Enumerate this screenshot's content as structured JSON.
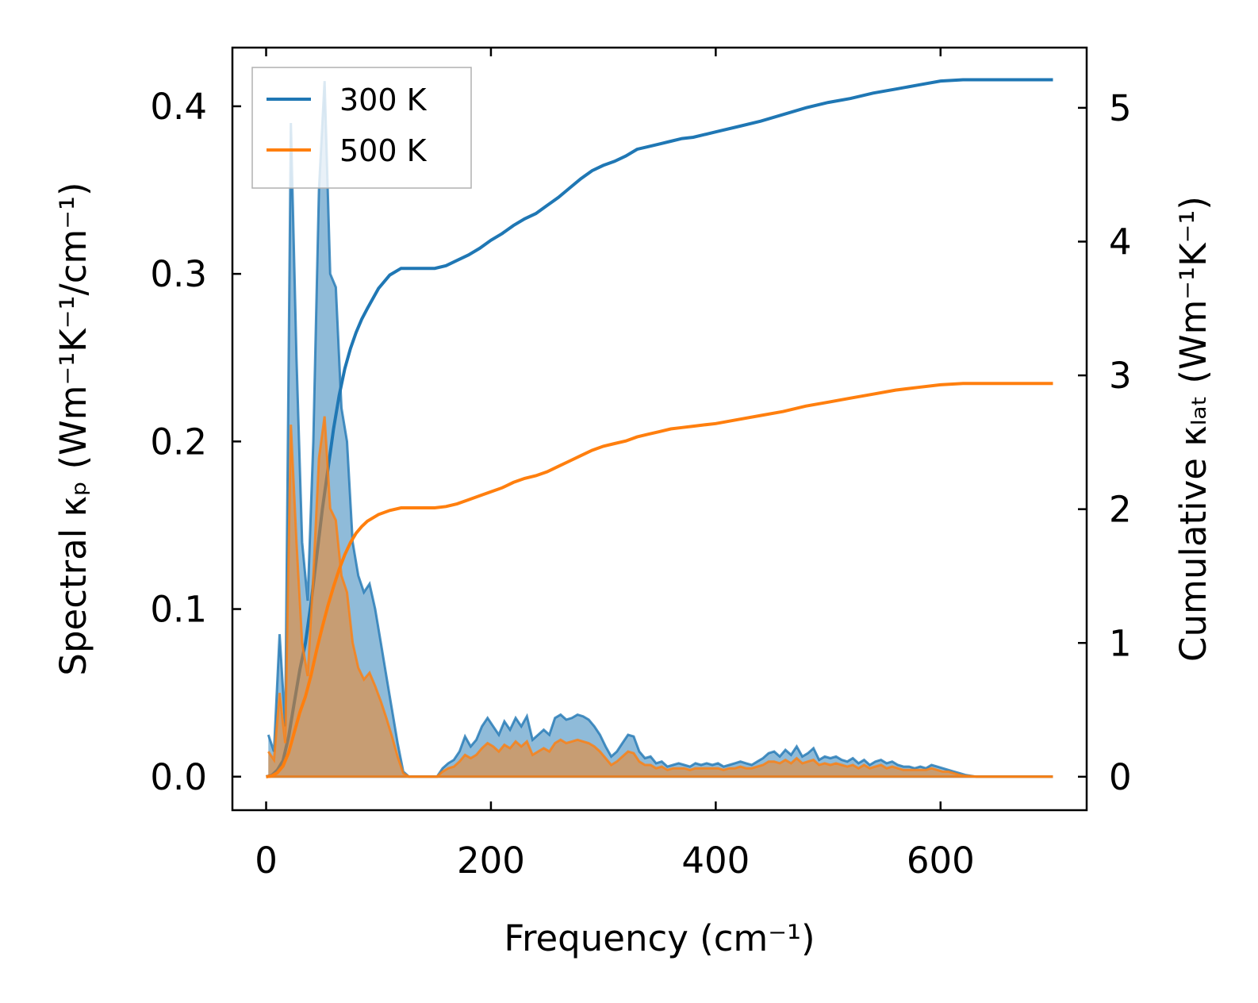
{
  "chart_data": {
    "type": "line",
    "xlabel": "Frequency (cm⁻¹)",
    "ylabel_left": "Spectral κₚ (Wm⁻¹K⁻¹/cm⁻¹)",
    "ylabel_right": "Cumulative κₗₐₜ (Wm⁻¹K⁻¹)",
    "xlim": [
      -30,
      730
    ],
    "ylim_left": [
      -0.02,
      0.435
    ],
    "ylim_right": [
      -0.25,
      5.45
    ],
    "xticks": [
      0,
      200,
      400,
      600
    ],
    "xtick_labels": [
      "0",
      "200",
      "400",
      "600"
    ],
    "yticks_left": [
      0.0,
      0.1,
      0.2,
      0.3,
      0.4
    ],
    "ytick_labels_left": [
      "0.0",
      "0.1",
      "0.2",
      "0.3",
      "0.4"
    ],
    "yticks_right": [
      0,
      1,
      2,
      3,
      4,
      5
    ],
    "ytick_labels_right": [
      "0",
      "1",
      "2",
      "3",
      "4",
      "5"
    ],
    "legend": {
      "position": "top-left",
      "entries": [
        "300 K",
        "500 K"
      ]
    },
    "series": [
      {
        "name": "300 K",
        "color": "#1f77b4",
        "spectral": {
          "x": [
            2,
            7,
            12,
            17,
            22,
            27,
            32,
            37,
            42,
            47,
            52,
            57,
            62,
            67,
            72,
            77,
            82,
            87,
            92,
            97,
            102,
            107,
            112,
            117,
            122,
            127,
            132,
            137,
            142,
            147,
            152,
            157,
            162,
            167,
            172,
            177,
            182,
            187,
            192,
            197,
            202,
            207,
            212,
            217,
            222,
            227,
            232,
            237,
            242,
            247,
            252,
            257,
            262,
            267,
            272,
            277,
            282,
            287,
            292,
            297,
            302,
            307,
            312,
            317,
            322,
            327,
            332,
            337,
            342,
            347,
            352,
            357,
            362,
            367,
            372,
            377,
            382,
            387,
            392,
            397,
            402,
            407,
            412,
            417,
            422,
            427,
            432,
            437,
            442,
            447,
            452,
            457,
            462,
            467,
            472,
            477,
            482,
            487,
            492,
            497,
            502,
            507,
            512,
            517,
            522,
            527,
            532,
            537,
            542,
            547,
            552,
            557,
            562,
            567,
            572,
            577,
            582,
            587,
            592,
            597,
            602,
            607,
            612,
            617,
            622,
            627,
            632,
            637,
            642,
            647,
            652,
            657,
            662,
            667,
            672,
            677,
            682,
            687,
            692,
            697,
            700
          ],
          "y": [
            0.025,
            0.015,
            0.085,
            0.03,
            0.39,
            0.25,
            0.14,
            0.105,
            0.2,
            0.35,
            0.415,
            0.3,
            0.292,
            0.22,
            0.2,
            0.14,
            0.12,
            0.11,
            0.115,
            0.1,
            0.08,
            0.06,
            0.04,
            0.02,
            0.003,
            0.0,
            0.0,
            0.0,
            0.0,
            0.0,
            0.0,
            0.005,
            0.008,
            0.01,
            0.015,
            0.024,
            0.018,
            0.022,
            0.03,
            0.035,
            0.03,
            0.025,
            0.033,
            0.028,
            0.035,
            0.03,
            0.036,
            0.022,
            0.025,
            0.028,
            0.025,
            0.035,
            0.037,
            0.034,
            0.035,
            0.037,
            0.036,
            0.034,
            0.03,
            0.025,
            0.018,
            0.012,
            0.015,
            0.02,
            0.025,
            0.024,
            0.015,
            0.011,
            0.012,
            0.008,
            0.009,
            0.006,
            0.007,
            0.008,
            0.007,
            0.006,
            0.008,
            0.007,
            0.008,
            0.007,
            0.008,
            0.006,
            0.007,
            0.008,
            0.009,
            0.008,
            0.007,
            0.009,
            0.011,
            0.014,
            0.015,
            0.012,
            0.016,
            0.013,
            0.018,
            0.012,
            0.014,
            0.017,
            0.01,
            0.012,
            0.011,
            0.012,
            0.01,
            0.009,
            0.011,
            0.008,
            0.01,
            0.007,
            0.009,
            0.01,
            0.008,
            0.009,
            0.007,
            0.006,
            0.006,
            0.005,
            0.006,
            0.005,
            0.007,
            0.006,
            0.005,
            0.004,
            0.003,
            0.002,
            0.001,
            0.0005,
            0.0,
            0.0,
            0.0,
            0.0,
            0.0,
            0.0,
            0.0,
            0.0,
            0.0,
            0.0,
            0.0,
            0.0,
            0.0,
            0.0,
            0.0
          ]
        },
        "cumulative": {
          "x": [
            0,
            5,
            10,
            15,
            20,
            25,
            30,
            35,
            40,
            45,
            50,
            55,
            60,
            65,
            70,
            75,
            80,
            85,
            90,
            100,
            110,
            120,
            130,
            140,
            150,
            160,
            170,
            180,
            190,
            200,
            210,
            220,
            230,
            240,
            250,
            260,
            270,
            280,
            290,
            300,
            310,
            320,
            330,
            340,
            350,
            360,
            370,
            380,
            390,
            400,
            420,
            440,
            460,
            480,
            500,
            520,
            540,
            560,
            580,
            600,
            620,
            640,
            660,
            680,
            700
          ],
          "y": [
            0.0,
            0.01,
            0.05,
            0.12,
            0.3,
            0.55,
            0.8,
            1.0,
            1.3,
            1.65,
            2.0,
            2.3,
            2.6,
            2.85,
            3.05,
            3.2,
            3.32,
            3.42,
            3.5,
            3.65,
            3.75,
            3.8,
            3.8,
            3.8,
            3.8,
            3.82,
            3.86,
            3.9,
            3.95,
            4.01,
            4.06,
            4.12,
            4.17,
            4.21,
            4.27,
            4.33,
            4.4,
            4.47,
            4.53,
            4.57,
            4.6,
            4.64,
            4.69,
            4.71,
            4.73,
            4.75,
            4.77,
            4.78,
            4.8,
            4.82,
            4.86,
            4.9,
            4.95,
            5.0,
            5.04,
            5.07,
            5.11,
            5.14,
            5.17,
            5.2,
            5.21,
            5.21,
            5.21,
            5.21,
            5.21
          ]
        }
      },
      {
        "name": "500 K",
        "color": "#ff7f0e",
        "spectral": {
          "x": [
            2,
            7,
            12,
            17,
            22,
            27,
            32,
            37,
            42,
            47,
            52,
            57,
            62,
            67,
            72,
            77,
            82,
            87,
            92,
            97,
            102,
            107,
            112,
            117,
            122,
            127,
            132,
            137,
            142,
            147,
            152,
            157,
            162,
            167,
            172,
            177,
            182,
            187,
            192,
            197,
            202,
            207,
            212,
            217,
            222,
            227,
            232,
            237,
            242,
            247,
            252,
            257,
            262,
            267,
            272,
            277,
            282,
            287,
            292,
            297,
            302,
            307,
            312,
            317,
            322,
            327,
            332,
            337,
            342,
            347,
            352,
            357,
            362,
            367,
            372,
            377,
            382,
            387,
            392,
            397,
            402,
            407,
            412,
            417,
            422,
            427,
            432,
            437,
            442,
            447,
            452,
            457,
            462,
            467,
            472,
            477,
            482,
            487,
            492,
            497,
            502,
            507,
            512,
            517,
            522,
            527,
            532,
            537,
            542,
            547,
            552,
            557,
            562,
            567,
            572,
            577,
            582,
            587,
            592,
            597,
            602,
            607,
            612,
            617,
            622,
            627,
            632,
            637,
            642,
            647,
            652,
            657,
            662,
            667,
            672,
            677,
            682,
            687,
            692,
            697,
            700
          ],
          "y": [
            0.015,
            0.01,
            0.05,
            0.02,
            0.21,
            0.14,
            0.08,
            0.06,
            0.12,
            0.19,
            0.215,
            0.16,
            0.153,
            0.12,
            0.11,
            0.08,
            0.065,
            0.058,
            0.062,
            0.054,
            0.045,
            0.035,
            0.024,
            0.012,
            0.002,
            0.0,
            0.0,
            0.0,
            0.0,
            0.0,
            0.0,
            0.003,
            0.005,
            0.006,
            0.009,
            0.013,
            0.011,
            0.013,
            0.017,
            0.02,
            0.018,
            0.015,
            0.019,
            0.017,
            0.021,
            0.018,
            0.021,
            0.013,
            0.015,
            0.017,
            0.015,
            0.02,
            0.022,
            0.02,
            0.021,
            0.022,
            0.021,
            0.02,
            0.018,
            0.015,
            0.011,
            0.007,
            0.009,
            0.012,
            0.015,
            0.014,
            0.009,
            0.007,
            0.007,
            0.005,
            0.006,
            0.004,
            0.005,
            0.005,
            0.005,
            0.004,
            0.005,
            0.005,
            0.005,
            0.005,
            0.005,
            0.004,
            0.005,
            0.005,
            0.006,
            0.005,
            0.005,
            0.006,
            0.007,
            0.009,
            0.009,
            0.008,
            0.01,
            0.008,
            0.011,
            0.008,
            0.009,
            0.01,
            0.007,
            0.008,
            0.007,
            0.008,
            0.007,
            0.006,
            0.007,
            0.005,
            0.007,
            0.005,
            0.006,
            0.007,
            0.005,
            0.006,
            0.005,
            0.004,
            0.004,
            0.004,
            0.004,
            0.004,
            0.005,
            0.004,
            0.003,
            0.003,
            0.002,
            0.001,
            0.0005,
            0.0003,
            0.0,
            0.0,
            0.0,
            0.0,
            0.0,
            0.0,
            0.0,
            0.0,
            0.0,
            0.0,
            0.0,
            0.0,
            0.0,
            0.0,
            0.0
          ]
        },
        "cumulative": {
          "x": [
            0,
            5,
            10,
            15,
            20,
            25,
            30,
            35,
            40,
            45,
            50,
            55,
            60,
            65,
            70,
            75,
            80,
            85,
            90,
            100,
            110,
            120,
            130,
            140,
            150,
            160,
            170,
            180,
            190,
            200,
            210,
            220,
            230,
            240,
            250,
            260,
            270,
            280,
            290,
            300,
            310,
            320,
            330,
            340,
            350,
            360,
            370,
            380,
            390,
            400,
            420,
            440,
            460,
            480,
            500,
            520,
            540,
            560,
            580,
            600,
            620,
            640,
            660,
            680,
            700
          ],
          "y": [
            0.0,
            0.005,
            0.03,
            0.08,
            0.18,
            0.33,
            0.48,
            0.6,
            0.76,
            0.95,
            1.12,
            1.28,
            1.42,
            1.55,
            1.66,
            1.75,
            1.82,
            1.87,
            1.91,
            1.96,
            1.99,
            2.01,
            2.01,
            2.01,
            2.01,
            2.02,
            2.04,
            2.07,
            2.1,
            2.13,
            2.16,
            2.2,
            2.23,
            2.25,
            2.28,
            2.32,
            2.36,
            2.4,
            2.44,
            2.47,
            2.49,
            2.51,
            2.54,
            2.56,
            2.58,
            2.6,
            2.61,
            2.62,
            2.63,
            2.64,
            2.67,
            2.7,
            2.73,
            2.77,
            2.8,
            2.83,
            2.86,
            2.89,
            2.91,
            2.93,
            2.94,
            2.94,
            2.94,
            2.94,
            2.94
          ]
        }
      }
    ]
  }
}
